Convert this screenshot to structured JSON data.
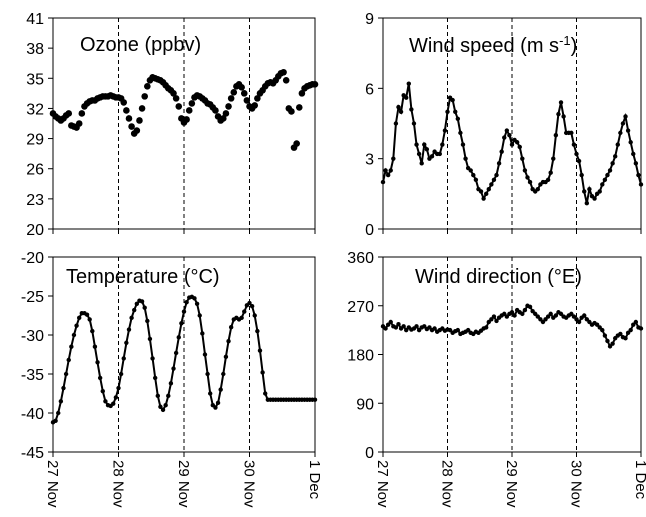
{
  "chart_data": [
    {
      "type": "scatter",
      "title": "Ozone (ppbv)",
      "ylim": [
        20,
        41
      ],
      "yticks": [
        "20",
        "23",
        "26",
        "29",
        "32",
        "35",
        "38",
        "41"
      ],
      "xlabels": [],
      "xlim": [
        0,
        4
      ],
      "day_guides": [
        1,
        2,
        3
      ],
      "series": [
        {
          "x": [
            0.0,
            0.04,
            0.08,
            0.12,
            0.16,
            0.2,
            0.24,
            0.28,
            0.32,
            0.36,
            0.4,
            0.44,
            0.48,
            0.52,
            0.56,
            0.6,
            0.64,
            0.68,
            0.72,
            0.76,
            0.8,
            0.84,
            0.88,
            0.92,
            0.96,
            1.0,
            1.04,
            1.08,
            1.12,
            1.16,
            1.2,
            1.24,
            1.28,
            1.32,
            1.36,
            1.4,
            1.44,
            1.48,
            1.52,
            1.56,
            1.6,
            1.64,
            1.68,
            1.72,
            1.76,
            1.8,
            1.84,
            1.88,
            1.92,
            1.96,
            2.0,
            2.04,
            2.08,
            2.12,
            2.16,
            2.2,
            2.24,
            2.28,
            2.32,
            2.36,
            2.4,
            2.44,
            2.48,
            2.52,
            2.56,
            2.6,
            2.64,
            2.68,
            2.72,
            2.76,
            2.8,
            2.84,
            2.88,
            2.92,
            2.96,
            3.0,
            3.04,
            3.08,
            3.12,
            3.16,
            3.2,
            3.24,
            3.28,
            3.32,
            3.36,
            3.4,
            3.44,
            3.48,
            3.52,
            3.56,
            3.6,
            3.64,
            3.68,
            3.72,
            3.76,
            3.8,
            3.84,
            3.88,
            3.92,
            3.96,
            4.0
          ],
          "values": [
            31.5,
            31.2,
            31.0,
            30.8,
            31.0,
            31.3,
            31.5,
            30.3,
            30.2,
            30.1,
            30.5,
            31.5,
            32.2,
            32.5,
            32.7,
            32.8,
            32.8,
            33.0,
            33.1,
            33.2,
            33.2,
            33.2,
            33.3,
            33.2,
            33.1,
            33.1,
            33.0,
            32.6,
            31.8,
            31.0,
            30.2,
            29.5,
            29.8,
            30.8,
            32.0,
            33.2,
            34.2,
            34.8,
            35.1,
            35.0,
            34.9,
            34.8,
            34.6,
            34.3,
            34.0,
            33.8,
            33.5,
            33.0,
            32.2,
            31.0,
            30.6,
            30.9,
            31.8,
            32.5,
            33.1,
            33.3,
            33.2,
            33.0,
            32.8,
            32.5,
            32.4,
            32.1,
            31.8,
            31.2,
            30.8,
            31.0,
            31.5,
            32.2,
            33.0,
            33.6,
            34.2,
            34.4,
            34.1,
            33.5,
            32.8,
            32.2,
            32.0,
            32.3,
            33.0,
            33.5,
            33.8,
            34.2,
            34.5,
            34.6,
            34.5,
            34.8,
            35.2,
            35.5,
            35.6,
            34.8,
            32.0,
            31.7,
            28.1,
            28.5,
            32.1,
            33.5,
            34.0,
            34.2,
            34.3,
            34.4,
            34.4
          ]
        }
      ]
    },
    {
      "type": "line",
      "title": "Wind speed (m s",
      "title_sup": "-1",
      "title_end": ")",
      "ylim": [
        0,
        9
      ],
      "yticks": [
        "0",
        "3",
        "6",
        "9"
      ],
      "xlabels": [],
      "xlim": [
        0,
        4
      ],
      "day_guides": [
        1,
        2,
        3
      ],
      "series": [
        {
          "x": [
            0.0,
            0.04,
            0.08,
            0.12,
            0.16,
            0.2,
            0.24,
            0.28,
            0.32,
            0.36,
            0.4,
            0.44,
            0.48,
            0.52,
            0.56,
            0.6,
            0.64,
            0.68,
            0.72,
            0.76,
            0.8,
            0.84,
            0.88,
            0.92,
            0.96,
            1.0,
            1.04,
            1.08,
            1.12,
            1.16,
            1.2,
            1.24,
            1.28,
            1.32,
            1.36,
            1.4,
            1.44,
            1.48,
            1.52,
            1.56,
            1.6,
            1.64,
            1.68,
            1.72,
            1.76,
            1.8,
            1.84,
            1.88,
            1.92,
            1.96,
            2.0,
            2.04,
            2.08,
            2.12,
            2.16,
            2.2,
            2.24,
            2.28,
            2.32,
            2.36,
            2.4,
            2.44,
            2.48,
            2.52,
            2.56,
            2.6,
            2.64,
            2.68,
            2.72,
            2.76,
            2.8,
            2.84,
            2.88,
            2.92,
            2.96,
            3.0,
            3.04,
            3.08,
            3.12,
            3.16,
            3.2,
            3.24,
            3.28,
            3.32,
            3.36,
            3.4,
            3.44,
            3.48,
            3.52,
            3.56,
            3.6,
            3.64,
            3.68,
            3.72,
            3.76,
            3.8,
            3.84,
            3.88,
            3.92,
            3.96,
            4.0
          ],
          "values": [
            2.0,
            2.5,
            2.3,
            2.5,
            3.0,
            4.5,
            5.2,
            5.0,
            5.7,
            5.6,
            6.2,
            5.1,
            4.5,
            3.6,
            3.2,
            2.8,
            3.6,
            3.4,
            3.0,
            3.1,
            3.3,
            3.2,
            3.2,
            3.6,
            4.2,
            5.0,
            5.6,
            5.5,
            5.0,
            4.7,
            4.1,
            3.6,
            3.0,
            2.6,
            2.5,
            2.3,
            2.1,
            1.7,
            1.6,
            1.3,
            1.5,
            1.7,
            1.9,
            2.1,
            2.3,
            2.8,
            3.3,
            3.9,
            4.2,
            4.0,
            3.6,
            3.8,
            3.7,
            3.5,
            3.0,
            2.5,
            2.2,
            2.0,
            1.7,
            1.6,
            1.7,
            1.9,
            2.0,
            2.0,
            2.1,
            2.4,
            3.0,
            4.0,
            4.9,
            5.4,
            4.8,
            4.1,
            4.1,
            4.1,
            3.6,
            3.2,
            2.9,
            2.3,
            1.6,
            1.1,
            1.7,
            1.4,
            1.3,
            1.5,
            1.6,
            1.9,
            2.1,
            2.3,
            2.5,
            2.8,
            3.1,
            3.6,
            4.1,
            4.5,
            4.8,
            4.2,
            3.7,
            3.2,
            2.8,
            2.3,
            1.9
          ]
        }
      ]
    },
    {
      "type": "line",
      "title": "Temperature (°C)",
      "ylim": [
        -45,
        -20
      ],
      "yticks": [
        "-45",
        "-40",
        "-35",
        "-30",
        "-25",
        "-20"
      ],
      "xlabels": [
        "27 Nov",
        "28 Nov",
        "29 Nov",
        "30 Nov",
        "1 Dec"
      ],
      "xlim": [
        0,
        4
      ],
      "day_guides": [
        1,
        2,
        3
      ],
      "series": [
        {
          "x": [
            0.0,
            0.04,
            0.08,
            0.12,
            0.16,
            0.2,
            0.24,
            0.28,
            0.32,
            0.36,
            0.4,
            0.44,
            0.48,
            0.52,
            0.56,
            0.6,
            0.64,
            0.68,
            0.72,
            0.76,
            0.8,
            0.84,
            0.88,
            0.92,
            0.96,
            1.0,
            1.04,
            1.08,
            1.12,
            1.16,
            1.2,
            1.24,
            1.28,
            1.32,
            1.36,
            1.4,
            1.44,
            1.48,
            1.52,
            1.56,
            1.6,
            1.64,
            1.68,
            1.72,
            1.76,
            1.8,
            1.84,
            1.88,
            1.92,
            1.96,
            2.0,
            2.04,
            2.08,
            2.12,
            2.16,
            2.2,
            2.24,
            2.28,
            2.32,
            2.36,
            2.4,
            2.44,
            2.48,
            2.52,
            2.56,
            2.6,
            2.64,
            2.68,
            2.72,
            2.76,
            2.8,
            2.84,
            2.88,
            2.92,
            2.96,
            3.0,
            3.04,
            3.08,
            3.12,
            3.16,
            3.2,
            3.24,
            3.28,
            3.32,
            3.36,
            3.4,
            3.44,
            3.48,
            3.52,
            3.56,
            3.6,
            3.64,
            3.68,
            3.72,
            3.76,
            3.8,
            3.84,
            3.88,
            3.92,
            3.96,
            4.0
          ],
          "values": [
            -41.2,
            -41.0,
            -40.0,
            -38.5,
            -36.8,
            -35.0,
            -33.2,
            -31.5,
            -30.0,
            -28.8,
            -27.8,
            -27.2,
            -27.2,
            -27.4,
            -28.0,
            -29.5,
            -31.5,
            -33.5,
            -35.5,
            -37.2,
            -38.5,
            -39.0,
            -39.1,
            -38.8,
            -38.0,
            -36.8,
            -35.0,
            -33.0,
            -31.0,
            -29.3,
            -27.8,
            -26.8,
            -26.0,
            -25.6,
            -25.7,
            -26.5,
            -28.2,
            -30.5,
            -33.0,
            -35.5,
            -37.8,
            -39.2,
            -39.6,
            -39.0,
            -37.8,
            -36.2,
            -34.3,
            -32.3,
            -30.3,
            -28.5,
            -27.0,
            -25.8,
            -25.2,
            -25.1,
            -25.3,
            -26.0,
            -27.5,
            -29.8,
            -32.5,
            -35.0,
            -37.5,
            -39.0,
            -39.3,
            -38.7,
            -37.0,
            -35.0,
            -32.8,
            -30.8,
            -29.0,
            -28.0,
            -27.8,
            -28.0,
            -27.8,
            -27.0,
            -26.2,
            -25.9,
            -26.3,
            -27.5,
            -29.5,
            -32.0,
            -34.8,
            -37.5,
            -38.3,
            -38.3,
            -38.3,
            -38.3,
            -38.3,
            -38.3,
            -38.3,
            -38.3,
            -38.3,
            -38.3,
            -38.3,
            -38.3,
            -38.3,
            -38.3,
            -38.3,
            -38.3,
            -38.3,
            -38.3,
            -38.3
          ]
        }
      ]
    },
    {
      "type": "line",
      "title": "Wind direction (°E)",
      "ylim": [
        0,
        360
      ],
      "yticks": [
        "0",
        "90",
        "180",
        "270",
        "360"
      ],
      "xlabels": [
        "27 Nov",
        "28 Nov",
        "29 Nov",
        "30 Nov",
        "1 Dec"
      ],
      "xlim": [
        0,
        4
      ],
      "day_guides": [
        1,
        2,
        3
      ],
      "series": [
        {
          "x": [
            0.0,
            0.04,
            0.08,
            0.12,
            0.16,
            0.2,
            0.24,
            0.28,
            0.32,
            0.36,
            0.4,
            0.44,
            0.48,
            0.52,
            0.56,
            0.6,
            0.64,
            0.68,
            0.72,
            0.76,
            0.8,
            0.84,
            0.88,
            0.92,
            0.96,
            1.0,
            1.04,
            1.08,
            1.12,
            1.16,
            1.2,
            1.24,
            1.28,
            1.32,
            1.36,
            1.4,
            1.44,
            1.48,
            1.52,
            1.56,
            1.6,
            1.64,
            1.68,
            1.72,
            1.76,
            1.8,
            1.84,
            1.88,
            1.92,
            1.96,
            2.0,
            2.04,
            2.08,
            2.12,
            2.16,
            2.2,
            2.24,
            2.28,
            2.32,
            2.36,
            2.4,
            2.44,
            2.48,
            2.52,
            2.56,
            2.6,
            2.64,
            2.68,
            2.72,
            2.76,
            2.8,
            2.84,
            2.88,
            2.92,
            2.96,
            3.0,
            3.04,
            3.08,
            3.12,
            3.16,
            3.2,
            3.24,
            3.28,
            3.32,
            3.36,
            3.4,
            3.44,
            3.48,
            3.52,
            3.56,
            3.6,
            3.64,
            3.68,
            3.72,
            3.76,
            3.8,
            3.84,
            3.88,
            3.92,
            3.96,
            4.0
          ],
          "values": [
            232,
            228,
            235,
            240,
            232,
            230,
            236,
            228,
            232,
            225,
            230,
            226,
            228,
            232,
            225,
            230,
            232,
            227,
            230,
            225,
            228,
            222,
            225,
            228,
            224,
            226,
            225,
            220,
            223,
            225,
            218,
            220,
            222,
            225,
            220,
            218,
            222,
            220,
            224,
            228,
            230,
            240,
            245,
            250,
            242,
            248,
            252,
            255,
            250,
            255,
            258,
            252,
            262,
            258,
            255,
            262,
            270,
            268,
            260,
            255,
            250,
            245,
            240,
            245,
            250,
            255,
            248,
            252,
            258,
            255,
            250,
            248,
            252,
            255,
            250,
            245,
            240,
            248,
            252,
            245,
            240,
            235,
            238,
            235,
            230,
            225,
            215,
            205,
            195,
            200,
            210,
            215,
            218,
            212,
            210,
            220,
            225,
            235,
            240,
            230,
            228
          ]
        }
      ]
    }
  ]
}
